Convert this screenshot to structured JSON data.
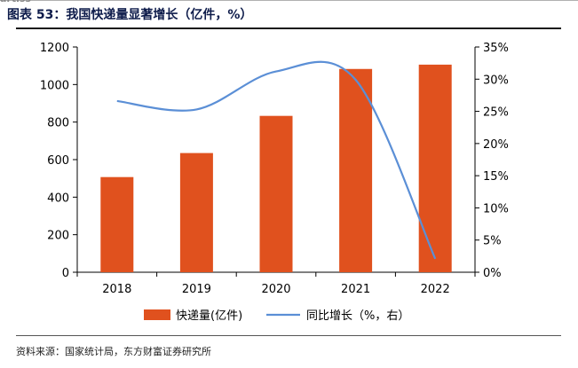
{
  "header": {
    "fragment": "artiss",
    "title": "图表 53：我国快递量显著增长（亿件，%）"
  },
  "footer": {
    "source": "资料来源：国家统计局，东方财富证券研究所"
  },
  "chart_data": {
    "type": "bar",
    "categories": [
      "2018",
      "2019",
      "2020",
      "2021",
      "2022"
    ],
    "series": [
      {
        "name": "快递量(亿件)",
        "type": "bar",
        "axis": "left",
        "color": "#e0511e",
        "values": [
          507,
          635,
          833,
          1083,
          1106
        ]
      },
      {
        "name": "同比增长（%，右）",
        "type": "line",
        "axis": "right",
        "color": "#5b8fd6",
        "values": [
          26.6,
          25.3,
          31.2,
          29.9,
          2.1
        ]
      }
    ],
    "yleft": {
      "ylim": [
        0,
        1200
      ],
      "ticks": [
        "0",
        "200",
        "400",
        "600",
        "800",
        "1000",
        "1200"
      ]
    },
    "yright": {
      "ylim": [
        0,
        35
      ],
      "ticks": [
        "0%",
        "5%",
        "10%",
        "15%",
        "20%",
        "25%",
        "30%",
        "35%"
      ]
    },
    "legend_placement": "bottom-center",
    "grid": false
  }
}
